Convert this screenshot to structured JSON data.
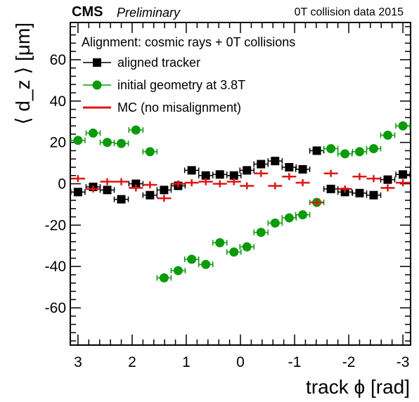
{
  "header": {
    "experiment": "CMS",
    "status": "Preliminary",
    "dataset": "0T collision data 2015"
  },
  "chart_data": {
    "type": "scatter",
    "title": "",
    "xlabel": "track ϕ [rad]",
    "ylabel": "⟨ d_z ⟩ [μm]",
    "xlim": [
      3.1416,
      -3.1416
    ],
    "ylim": [
      -78,
      78
    ],
    "x_reversed": true,
    "x_ticks": [
      3,
      2,
      1,
      0,
      -1,
      -2,
      -3
    ],
    "x_tick_labels": [
      "3",
      "2",
      "1",
      "0",
      "-1",
      "-2",
      "-3"
    ],
    "y_ticks": [
      -60,
      -40,
      -20,
      0,
      20,
      40,
      60
    ],
    "y_tick_labels": [
      "-60",
      "-40",
      "-20",
      "0",
      "20",
      "40",
      "60"
    ],
    "grid": false,
    "legend": {
      "header": "Alignment: cosmic rays + 0T collisions",
      "placement": "top-left"
    },
    "series": [
      {
        "name": "aligned tracker",
        "color": "#000000",
        "marker": "square",
        "x": [
          3.0,
          2.72,
          2.46,
          2.2,
          1.93,
          1.67,
          1.41,
          1.15,
          0.9,
          0.64,
          0.38,
          0.12,
          -0.12,
          -0.38,
          -0.64,
          -0.9,
          -1.15,
          -1.41,
          -1.67,
          -1.93,
          -2.2,
          -2.46,
          -2.72,
          -3.0
        ],
        "y": [
          -4,
          -1.5,
          -3,
          -7.5,
          0,
          -5.5,
          -3,
          -1,
          6.5,
          4,
          4.5,
          4,
          6.5,
          9.5,
          11,
          8,
          7,
          16,
          -2.5,
          -4,
          -4.5,
          -5.5,
          2,
          4.5
        ],
        "x_err": 0.13
      },
      {
        "name": "initial geometry at 3.8T",
        "color": "#0a9a0a",
        "marker": "circle",
        "x": [
          3.0,
          2.72,
          2.46,
          2.2,
          1.93,
          1.67,
          1.41,
          1.15,
          0.9,
          0.64,
          0.38,
          0.12,
          -0.12,
          -0.38,
          -0.64,
          -0.9,
          -1.15,
          -1.41,
          -1.67,
          -1.93,
          -2.2,
          -2.46,
          -2.72,
          -3.0
        ],
        "y": [
          21,
          24.5,
          20,
          19.5,
          26,
          15.5,
          -45.5,
          -42,
          -36.5,
          -39,
          -28.5,
          -33,
          -30.5,
          -23.5,
          -19,
          -16.5,
          -15,
          -9,
          17,
          14.5,
          15.5,
          17,
          23.5,
          28
        ],
        "x_err": 0.13
      },
      {
        "name": "MC (no misalignment)",
        "color": "#e11414",
        "marker": "cross",
        "x": [
          3.0,
          2.72,
          2.46,
          2.2,
          1.93,
          1.67,
          1.41,
          1.15,
          0.9,
          0.64,
          0.38,
          0.12,
          -0.12,
          -0.38,
          -0.64,
          -0.9,
          -1.15,
          -1.41,
          -1.67,
          -1.93,
          -2.2,
          -2.46,
          -2.72,
          -3.0
        ],
        "y": [
          2.5,
          -2.5,
          1,
          1,
          -2,
          -0.5,
          -7,
          0,
          0.5,
          1,
          0,
          1,
          -1,
          5,
          -1,
          3.5,
          0.5,
          -9,
          5,
          -2.5,
          3.5,
          2.5,
          -2,
          0.5
        ],
        "x_err": 0.13
      }
    ]
  }
}
